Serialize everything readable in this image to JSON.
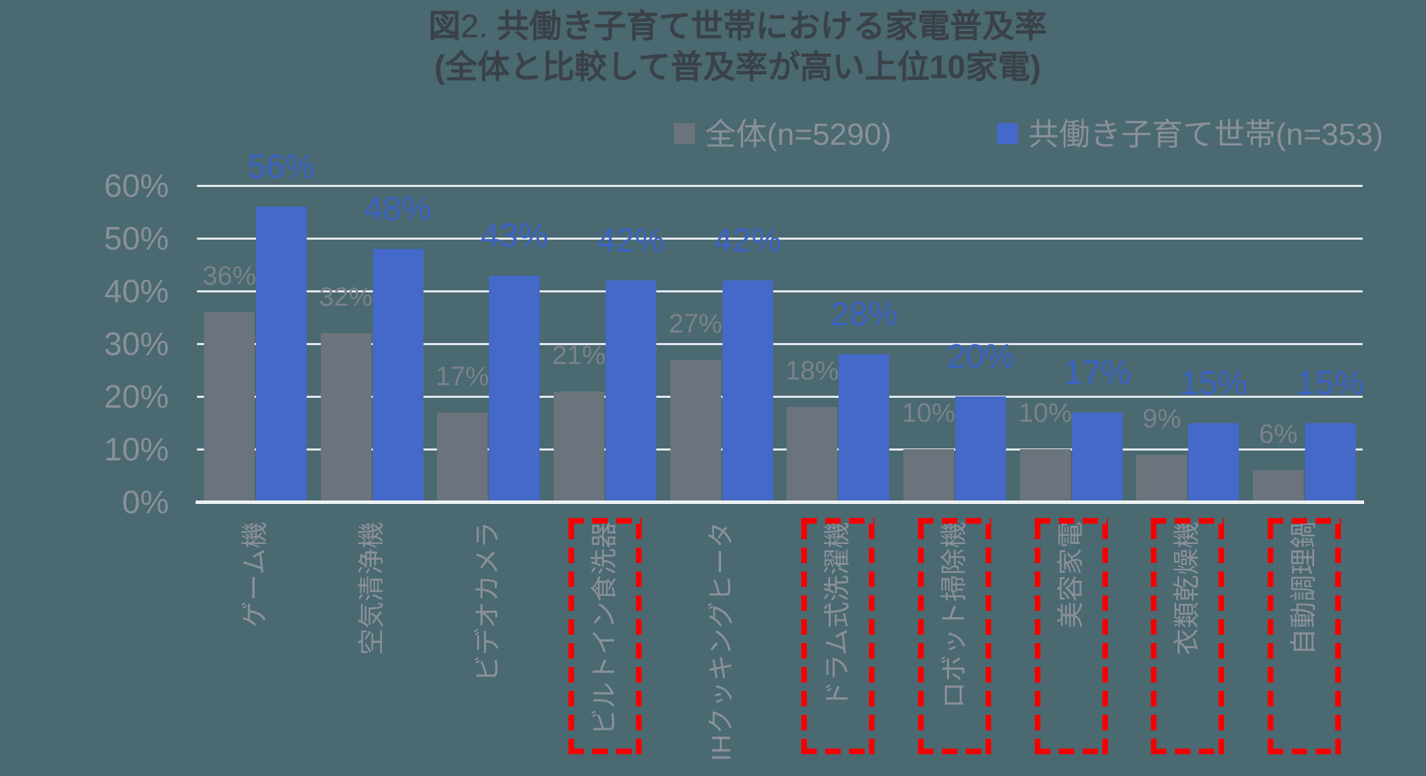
{
  "figure": {
    "title_prefix": "図",
    "title_number": "2. ",
    "title_line1": "共働き子育て世帯における家電普及率",
    "title_line2": "(全体と比較して普及率が高い上位10家電)"
  },
  "legend": {
    "items": [
      {
        "label": "全体(n=5290)",
        "color": "#6B747C"
      },
      {
        "label": "共働き子育て世帯(n=353)",
        "color": "#4469C8"
      }
    ]
  },
  "chart_data": {
    "type": "bar",
    "title": "図2. 共働き子育て世帯における家電普及率 (全体と比較して普及率が高い上位10家電)",
    "categories": [
      "ゲーム機",
      "空気清浄機",
      "ビデオカメラ",
      "ビルトイン食洗器",
      "IHクッキングヒータ",
      "ドラム式洗濯機",
      "ロボット掃除機",
      "美容家電",
      "衣類乾燥機",
      "自動調理鍋"
    ],
    "series": [
      {
        "name": "全体(n=5290)",
        "color": "#6B747C",
        "values": [
          36,
          32,
          17,
          21,
          27,
          18,
          10,
          10,
          9,
          6
        ]
      },
      {
        "name": "共働き子育て世帯(n=353)",
        "color": "#4469C8",
        "values": [
          56,
          48,
          43,
          42,
          42,
          28,
          20,
          17,
          15,
          15
        ]
      }
    ],
    "data_label_format": "percent",
    "highlighted_category_indices": [
      3,
      5,
      6,
      7,
      8,
      9
    ],
    "highlighted_categories": [
      "ビルトイン食洗器",
      "ドラム式洗濯機",
      "ロボット掃除機",
      "美容家電",
      "衣類乾燥機",
      "自動調理鍋"
    ],
    "ylim": [
      0,
      60
    ],
    "yticks": [
      "0%",
      "10%",
      "20%",
      "30%",
      "40%",
      "50%",
      "60%"
    ],
    "grid": true,
    "legend_position": "top-right"
  },
  "colors": {
    "background": "#4A6971",
    "title_text": "#3A4148",
    "axis_text": "#8A9099",
    "category_text": "#8A9099",
    "gray_data_label": "#7B828A",
    "blue_data_label": "#3C63C5",
    "gridline": "#E2E9ED",
    "axis_line": "#ECF1F4",
    "highlight_box": "#F50000"
  }
}
